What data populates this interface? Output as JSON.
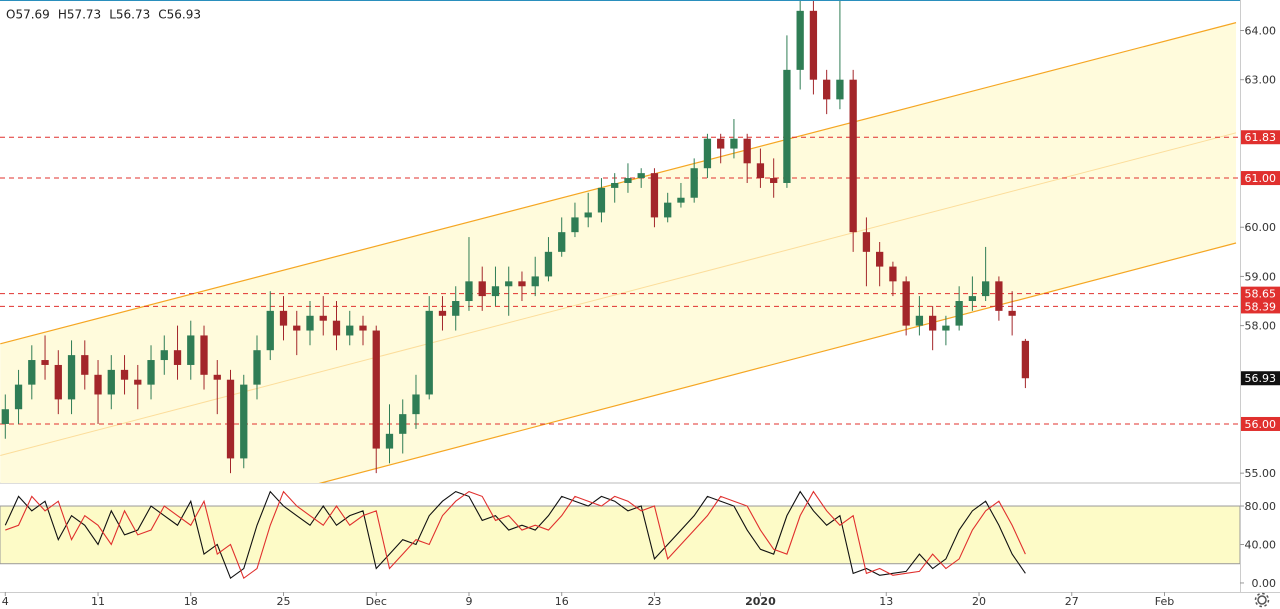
{
  "chart_data": [
    {
      "type": "candlestick",
      "ohlc_labels": [
        "O57.69",
        "H57.73",
        "L56.73",
        "C56.93"
      ],
      "x": [
        0,
        1,
        2,
        3,
        4,
        5,
        6,
        7,
        8,
        9,
        10,
        11,
        12,
        13,
        14,
        15,
        16,
        17,
        18,
        19,
        20,
        21,
        22,
        23,
        24,
        25,
        26,
        27,
        28,
        29,
        30,
        31,
        32,
        33,
        34,
        35,
        36,
        37,
        38,
        39,
        40,
        41,
        42,
        43,
        44,
        45,
        46,
        47,
        48,
        49,
        50,
        51,
        52,
        53,
        54,
        55,
        56,
        57,
        58,
        59,
        60,
        61,
        62,
        63,
        64,
        65,
        66,
        67,
        68,
        69,
        70,
        71,
        72,
        73,
        74,
        75,
        76,
        77
      ],
      "open": [
        56.0,
        56.3,
        56.8,
        57.3,
        57.2,
        56.5,
        57.4,
        57.0,
        56.6,
        57.1,
        56.9,
        56.8,
        57.3,
        57.5,
        57.2,
        57.8,
        57.0,
        56.9,
        55.3,
        56.8,
        57.5,
        58.3,
        58.0,
        57.9,
        58.2,
        58.1,
        57.8,
        58.0,
        57.9,
        55.5,
        55.8,
        56.2,
        56.6,
        58.3,
        58.2,
        58.5,
        58.9,
        58.6,
        58.8,
        58.9,
        58.8,
        59.0,
        59.5,
        59.9,
        60.2,
        60.3,
        60.8,
        60.9,
        61.0,
        61.1,
        60.2,
        60.5,
        60.6,
        61.2,
        61.8,
        61.6,
        61.8,
        61.3,
        61.0,
        60.9,
        63.2,
        64.4,
        63.0,
        62.6,
        63.0,
        59.9,
        59.5,
        59.2,
        58.9,
        58.0,
        58.2,
        57.9,
        58.0,
        58.5,
        58.6,
        58.9,
        58.3,
        57.69
      ],
      "high": [
        56.6,
        57.1,
        57.6,
        57.8,
        57.5,
        57.7,
        57.7,
        57.3,
        57.4,
        57.4,
        57.2,
        57.6,
        57.8,
        58.0,
        58.1,
        58.0,
        57.3,
        57.1,
        57.0,
        57.8,
        58.7,
        58.6,
        58.3,
        58.5,
        58.6,
        58.5,
        58.3,
        58.2,
        58.0,
        56.4,
        56.5,
        57.0,
        58.6,
        58.6,
        58.8,
        59.8,
        59.2,
        59.2,
        59.2,
        59.1,
        59.4,
        59.8,
        60.2,
        60.5,
        60.7,
        61.0,
        61.1,
        61.3,
        61.2,
        61.2,
        60.7,
        60.9,
        61.4,
        61.9,
        61.9,
        62.2,
        61.9,
        61.6,
        61.4,
        63.9,
        64.6,
        64.6,
        63.2,
        64.6,
        63.2,
        60.2,
        59.7,
        59.3,
        59.0,
        58.6,
        58.4,
        58.2,
        58.8,
        59.0,
        59.6,
        59.0,
        58.7,
        57.73
      ],
      "low": [
        55.7,
        56.0,
        56.5,
        56.9,
        56.2,
        56.2,
        56.7,
        56.0,
        56.3,
        56.6,
        56.3,
        56.5,
        57.0,
        56.9,
        56.9,
        56.7,
        56.2,
        55.0,
        55.1,
        56.5,
        57.3,
        57.7,
        57.4,
        57.6,
        57.8,
        57.5,
        57.6,
        57.6,
        55.0,
        55.2,
        55.4,
        55.9,
        56.5,
        57.9,
        57.9,
        58.3,
        58.3,
        58.4,
        58.2,
        58.5,
        58.6,
        58.9,
        59.4,
        59.8,
        60.0,
        60.1,
        60.5,
        60.7,
        60.8,
        60.0,
        60.1,
        60.4,
        60.5,
        61.0,
        61.3,
        61.4,
        60.9,
        60.8,
        60.6,
        60.8,
        62.8,
        62.7,
        62.3,
        62.4,
        59.5,
        58.8,
        58.8,
        58.6,
        57.8,
        57.8,
        57.5,
        57.6,
        57.9,
        58.3,
        58.5,
        58.1,
        57.8,
        56.73
      ],
      "close": [
        56.3,
        56.8,
        57.3,
        57.2,
        56.5,
        57.4,
        57.0,
        56.6,
        57.1,
        56.9,
        56.8,
        57.3,
        57.5,
        57.2,
        57.8,
        57.0,
        56.9,
        55.3,
        56.8,
        57.5,
        58.3,
        58.0,
        57.9,
        58.2,
        58.1,
        57.8,
        58.0,
        57.9,
        55.5,
        55.8,
        56.2,
        56.6,
        58.3,
        58.2,
        58.5,
        58.9,
        58.6,
        58.8,
        58.9,
        58.8,
        59.0,
        59.5,
        59.9,
        60.2,
        60.3,
        60.8,
        60.9,
        61.0,
        61.1,
        60.2,
        60.5,
        60.6,
        61.2,
        61.8,
        61.6,
        61.8,
        61.3,
        61.0,
        60.9,
        63.2,
        64.4,
        63.0,
        62.6,
        63.0,
        59.9,
        59.5,
        59.2,
        58.9,
        58.0,
        58.2,
        57.9,
        58.0,
        58.5,
        58.6,
        58.9,
        58.3,
        58.2,
        56.93
      ],
      "xlim": [
        -0.4,
        93.2
      ],
      "ylim": [
        54.8,
        64.6
      ],
      "yticks": [
        {
          "value": 64,
          "label": "64.00"
        },
        {
          "value": 63,
          "label": "63.00"
        },
        {
          "value": 60,
          "label": "60.00"
        },
        {
          "value": 59,
          "label": "59.00"
        },
        {
          "value": 58,
          "label": "58.00"
        },
        {
          "value": 55,
          "label": "55.00"
        }
      ],
      "xticks": [
        {
          "value": 0,
          "label": "4"
        },
        {
          "value": 7,
          "label": "11"
        },
        {
          "value": 14,
          "label": "18"
        },
        {
          "value": 21,
          "label": "25"
        },
        {
          "value": 28,
          "label": "Dec"
        },
        {
          "value": 35,
          "label": "9"
        },
        {
          "value": 42,
          "label": "16"
        },
        {
          "value": 49,
          "label": "23"
        },
        {
          "value": 57,
          "label": "2020"
        },
        {
          "value": 66.5,
          "label": "13"
        },
        {
          "value": 73.5,
          "label": "20"
        },
        {
          "value": 80.5,
          "label": "27"
        },
        {
          "value": 87.5,
          "label": "Feb"
        }
      ],
      "levels": [
        {
          "value": 61.83,
          "label": "61.83"
        },
        {
          "value": 61,
          "label": "61.00"
        },
        {
          "value": 58.65,
          "label": "58.65"
        },
        {
          "value": 58.39,
          "label": "58.39"
        },
        {
          "value": 56,
          "label": "56.00"
        }
      ],
      "channel": {
        "upper": [
          [
            -0.38,
            57.63
          ],
          [
            92.9,
            64.16
          ]
        ],
        "lower": [
          [
            -0.38,
            53.09
          ],
          [
            92.9,
            59.68
          ]
        ]
      },
      "colors": {
        "up": "#2f7d55",
        "down": "#a3262a",
        "level": "#e0302e",
        "channel": "#f5a623",
        "fill": "#fffbdc",
        "last": "#111111"
      }
    },
    {
      "type": "stochastic",
      "series": [
        {
          "color": "#111111",
          "values": [
            60,
            90,
            75,
            85,
            45,
            70,
            60,
            40,
            75,
            50,
            55,
            80,
            70,
            60,
            85,
            30,
            40,
            5,
            15,
            60,
            95,
            80,
            70,
            60,
            80,
            60,
            70,
            75,
            15,
            30,
            45,
            40,
            70,
            85,
            95,
            90,
            65,
            70,
            55,
            60,
            55,
            70,
            90,
            85,
            80,
            90,
            85,
            75,
            80,
            25,
            40,
            55,
            70,
            90,
            85,
            80,
            55,
            35,
            30,
            70,
            95,
            75,
            60,
            70,
            10,
            15,
            8,
            10,
            12,
            30,
            15,
            25,
            55,
            75,
            85,
            60,
            30,
            10
          ]
        },
        {
          "color": "#e0302e",
          "values": [
            55,
            60,
            90,
            75,
            85,
            45,
            70,
            60,
            40,
            75,
            50,
            55,
            80,
            70,
            60,
            85,
            30,
            40,
            5,
            15,
            60,
            95,
            80,
            70,
            60,
            80,
            60,
            70,
            75,
            15,
            30,
            45,
            40,
            70,
            85,
            95,
            90,
            65,
            70,
            55,
            60,
            55,
            70,
            90,
            85,
            80,
            90,
            85,
            75,
            80,
            25,
            40,
            55,
            70,
            90,
            85,
            80,
            55,
            35,
            30,
            70,
            95,
            75,
            60,
            70,
            10,
            15,
            8,
            10,
            12,
            30,
            15,
            25,
            55,
            75,
            85,
            60,
            30
          ]
        }
      ],
      "ylim": [
        -9.4,
        102.9
      ],
      "band": [
        20,
        80
      ],
      "yticks": [
        {
          "value": 0,
          "label": "0.00"
        },
        {
          "value": 40,
          "label": "40.00"
        },
        {
          "value": 80,
          "label": "80.00"
        }
      ]
    }
  ]
}
